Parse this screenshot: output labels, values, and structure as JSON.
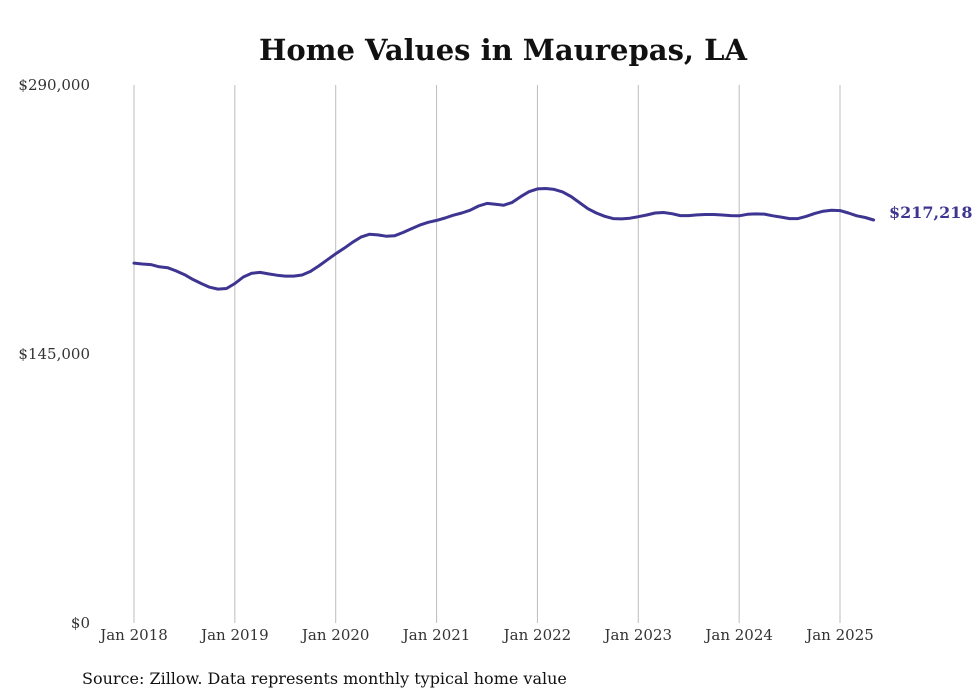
{
  "chart_data": {
    "type": "line",
    "title": "Home Values in Maurepas, LA",
    "xlabel": "",
    "ylabel": "",
    "ylim": [
      0,
      290000
    ],
    "y_ticks": [
      {
        "value": 0,
        "label": "$0"
      },
      {
        "value": 145000,
        "label": "$145,000"
      },
      {
        "value": 290000,
        "label": "$290,000"
      }
    ],
    "x_ticks": [
      {
        "date": "2018-01",
        "label": "Jan 2018"
      },
      {
        "date": "2019-01",
        "label": "Jan 2019"
      },
      {
        "date": "2020-01",
        "label": "Jan 2020"
      },
      {
        "date": "2021-01",
        "label": "Jan 2021"
      },
      {
        "date": "2022-01",
        "label": "Jan 2022"
      },
      {
        "date": "2023-01",
        "label": "Jan 2023"
      },
      {
        "date": "2024-01",
        "label": "Jan 2024"
      },
      {
        "date": "2025-01",
        "label": "Jan 2025"
      }
    ],
    "grid": "vertical",
    "legend": "none",
    "line_color": "#3d3591",
    "end_label": "$217,218",
    "series": [
      {
        "x": [
          "2018-01",
          "2018-02",
          "2018-03",
          "2018-04",
          "2018-05",
          "2018-06",
          "2018-07",
          "2018-08",
          "2018-09",
          "2018-10",
          "2018-11",
          "2018-12",
          "2019-01",
          "2019-02",
          "2019-03",
          "2019-04",
          "2019-05",
          "2019-06",
          "2019-07",
          "2019-08",
          "2019-09",
          "2019-10",
          "2019-11",
          "2019-12",
          "2020-01",
          "2020-02",
          "2020-03",
          "2020-04",
          "2020-05",
          "2020-06",
          "2020-07",
          "2020-08",
          "2020-09",
          "2020-10",
          "2020-11",
          "2020-12",
          "2021-01",
          "2021-02",
          "2021-03",
          "2021-04",
          "2021-05",
          "2021-06",
          "2021-07",
          "2021-08",
          "2021-09",
          "2021-10",
          "2021-11",
          "2021-12",
          "2022-01",
          "2022-02",
          "2022-03",
          "2022-04",
          "2022-05",
          "2022-06",
          "2022-07",
          "2022-08",
          "2022-09",
          "2022-10",
          "2022-11",
          "2022-12",
          "2023-01",
          "2023-02",
          "2023-03",
          "2023-04",
          "2023-05",
          "2023-06",
          "2023-07",
          "2023-08",
          "2023-09",
          "2023-10",
          "2023-11",
          "2023-12",
          "2024-01",
          "2024-02",
          "2024-03",
          "2024-04",
          "2024-05",
          "2024-06",
          "2024-07",
          "2024-08",
          "2024-09",
          "2024-10",
          "2024-11",
          "2024-12",
          "2025-01",
          "2025-02",
          "2025-03",
          "2025-04",
          "2025-05"
        ],
        "values": [
          194000,
          193500,
          193200,
          192000,
          191500,
          189800,
          187800,
          185200,
          183000,
          181000,
          180000,
          180300,
          183000,
          186500,
          188500,
          189000,
          188200,
          187500,
          187000,
          187000,
          187600,
          189500,
          192500,
          195800,
          199000,
          202000,
          205200,
          208000,
          209500,
          209200,
          208500,
          208700,
          210500,
          212500,
          214500,
          216000,
          217000,
          218300,
          219800,
          221000,
          222500,
          224800,
          226200,
          225700,
          225200,
          226700,
          229800,
          232500,
          234000,
          234200,
          233700,
          232400,
          229900,
          226600,
          223300,
          221000,
          219200,
          218000,
          217800,
          218200,
          219000,
          219900,
          221000,
          221300,
          220600,
          219600,
          219600,
          220000,
          220200,
          220200,
          219900,
          219600,
          219500,
          220300,
          220500,
          220400,
          219500,
          218800,
          218000,
          218000,
          219200,
          220800,
          222000,
          222500,
          222300,
          221000,
          219500,
          218600,
          217218
        ]
      }
    ]
  },
  "source_text": "Source: Zillow. Data represents monthly typical home value"
}
